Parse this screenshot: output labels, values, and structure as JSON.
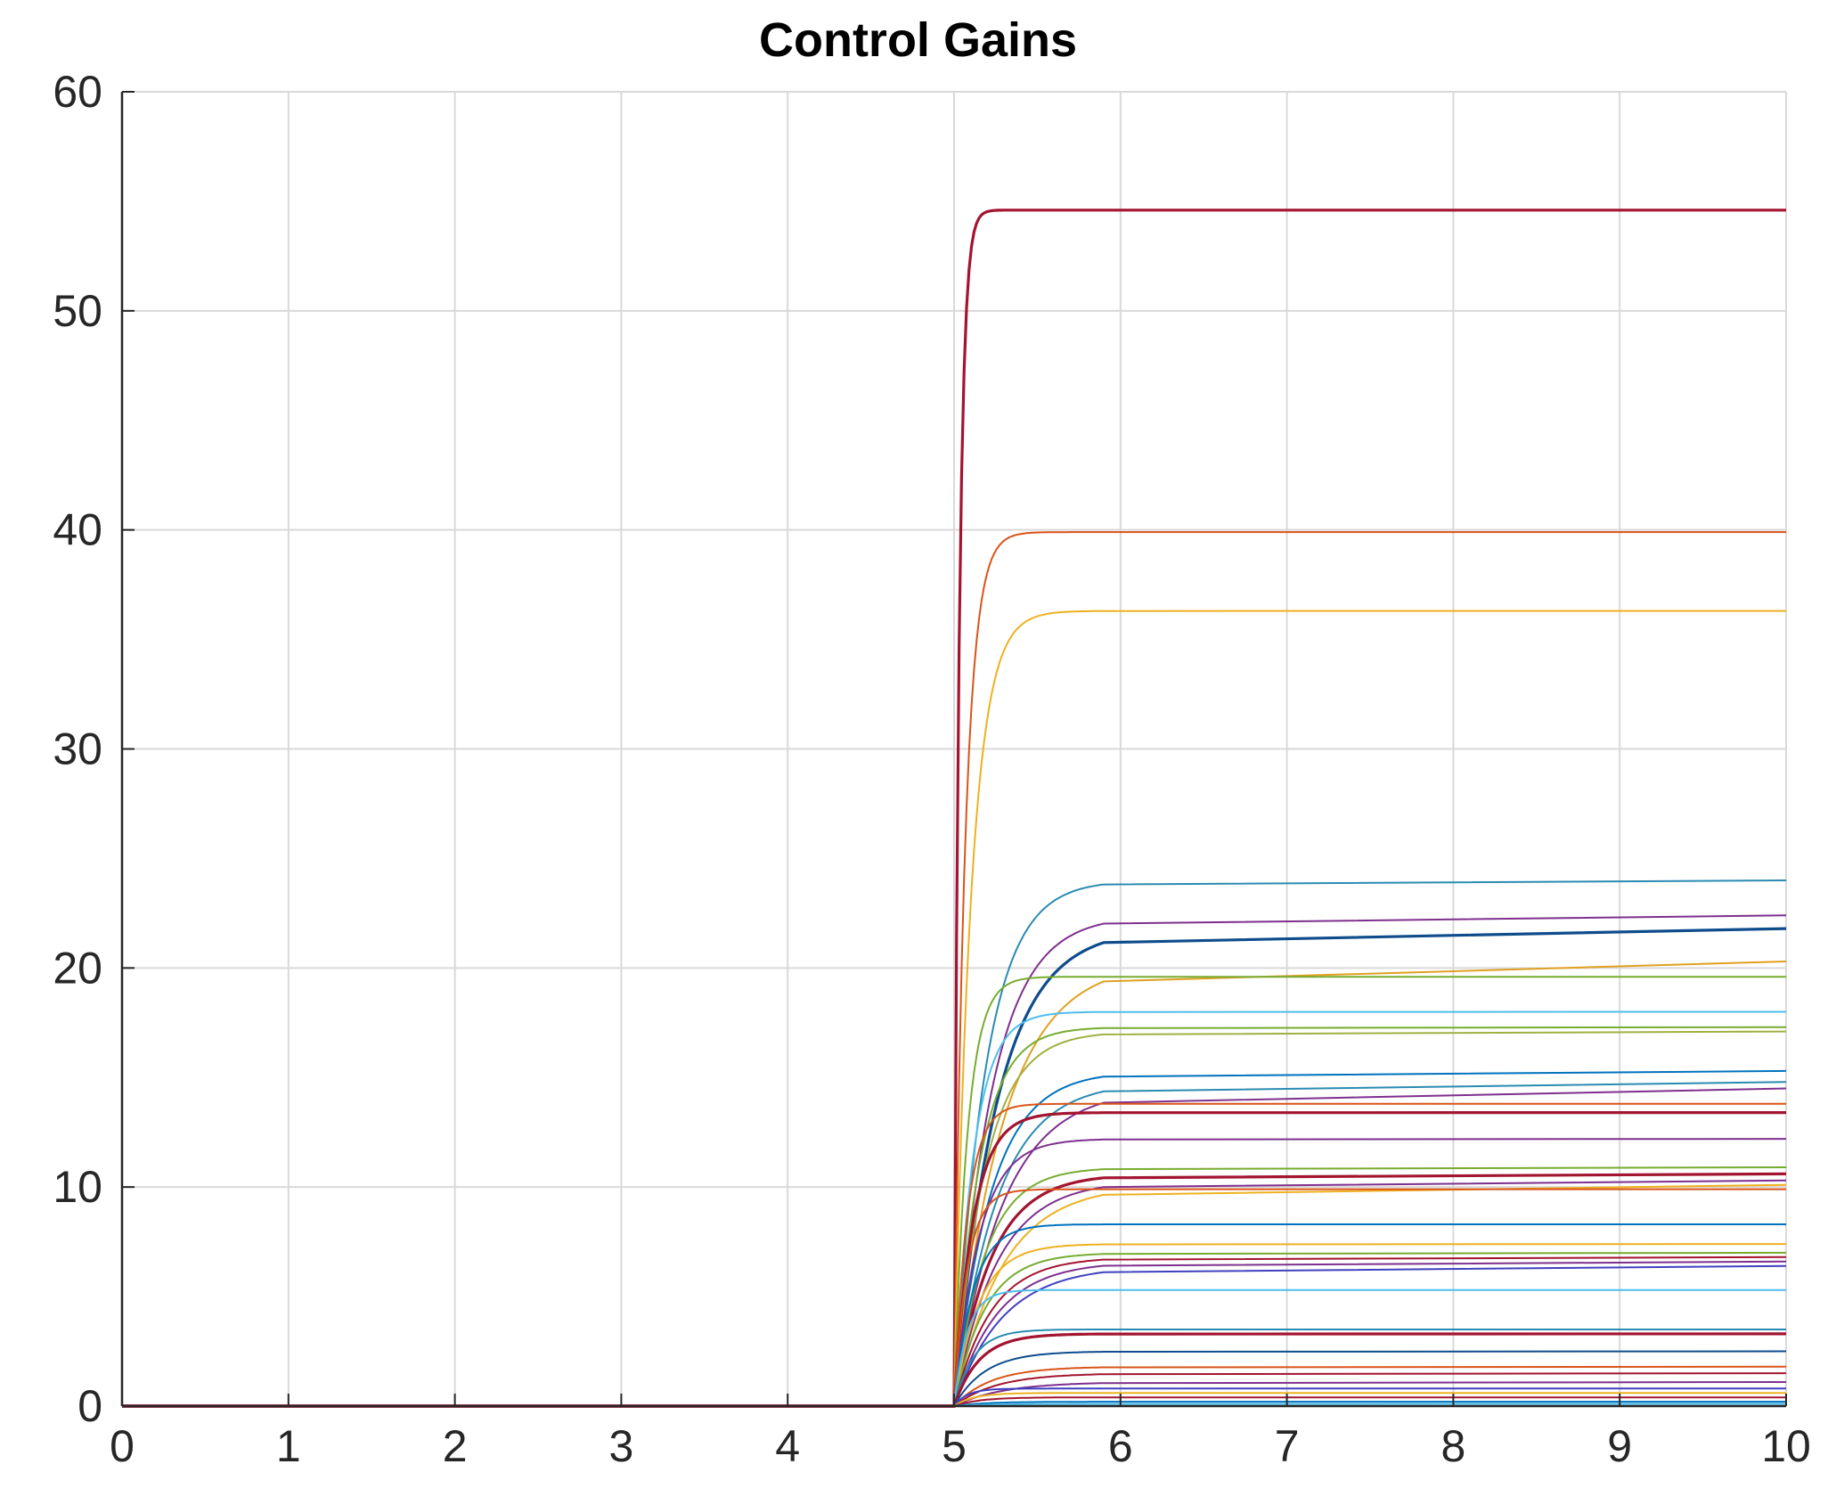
{
  "chart_data": {
    "type": "line",
    "title": "Control Gains",
    "xlabel": "",
    "ylabel": "",
    "xlim": [
      0,
      10
    ],
    "ylim": [
      0,
      60
    ],
    "x_ticks": [
      "0",
      "1",
      "2",
      "3",
      "4",
      "5",
      "6",
      "7",
      "8",
      "9",
      "10"
    ],
    "y_ticks": [
      "0",
      "10",
      "20",
      "30",
      "40",
      "50",
      "60"
    ],
    "grid": true,
    "legend": "none",
    "axis_color": "#262626",
    "grid_color": "#d9d9d9",
    "switch_time": 5,
    "x_end": 10,
    "series": [
      {
        "values": [
          54.6
        ],
        "color": "#a2142f"
      },
      {
        "values": [
          39.9
        ],
        "color": "#d95319"
      },
      {
        "values": [
          36.3
        ],
        "color": "#edb120"
      },
      {
        "values": [
          24.0
        ],
        "color": "#2a8bb1"
      },
      {
        "values": [
          22.4
        ],
        "color": "#7e2f8e"
      },
      {
        "values": [
          21.8
        ],
        "color": "#0e4c8c"
      },
      {
        "values": [
          20.3
        ],
        "color": "#e0a020"
      },
      {
        "values": [
          19.6
        ],
        "color": "#77ac30"
      },
      {
        "values": [
          18.0
        ],
        "color": "#4dbeee"
      },
      {
        "values": [
          17.3
        ],
        "color": "#77ac30"
      },
      {
        "values": [
          17.1
        ],
        "color": "#a0b040"
      },
      {
        "values": [
          15.3
        ],
        "color": "#0072bd"
      },
      {
        "values": [
          14.8
        ],
        "color": "#2a8bb1"
      },
      {
        "values": [
          14.5
        ],
        "color": "#7e2f8e"
      },
      {
        "values": [
          13.8
        ],
        "color": "#d95319"
      },
      {
        "values": [
          13.4
        ],
        "color": "#a2142f"
      },
      {
        "values": [
          12.2
        ],
        "color": "#7e2f8e"
      },
      {
        "values": [
          10.9
        ],
        "color": "#77ac30"
      },
      {
        "values": [
          10.6
        ],
        "color": "#a2142f"
      },
      {
        "values": [
          10.3
        ],
        "color": "#7e2f8e"
      },
      {
        "values": [
          10.1
        ],
        "color": "#edb120"
      },
      {
        "values": [
          9.9
        ],
        "color": "#d95319"
      },
      {
        "values": [
          8.3
        ],
        "color": "#0072bd"
      },
      {
        "values": [
          7.4
        ],
        "color": "#edb120"
      },
      {
        "values": [
          7.0
        ],
        "color": "#77ac30"
      },
      {
        "values": [
          6.8
        ],
        "color": "#a2142f"
      },
      {
        "values": [
          6.6
        ],
        "color": "#7e2f8e"
      },
      {
        "values": [
          6.4
        ],
        "color": "#4040c0"
      },
      {
        "values": [
          5.3
        ],
        "color": "#4dbeee"
      },
      {
        "values": [
          3.5
        ],
        "color": "#2a8bb1"
      },
      {
        "values": [
          3.3
        ],
        "color": "#a2142f"
      },
      {
        "values": [
          2.5
        ],
        "color": "#0e4c8c"
      },
      {
        "values": [
          1.8
        ],
        "color": "#d95319"
      },
      {
        "values": [
          1.5
        ],
        "color": "#a2142f"
      },
      {
        "values": [
          1.1
        ],
        "color": "#7e2f8e"
      },
      {
        "values": [
          0.8
        ],
        "color": "#4040c0"
      },
      {
        "values": [
          0.6
        ],
        "color": "#edb120"
      },
      {
        "values": [
          0.4
        ],
        "color": "#a2142f"
      },
      {
        "values": [
          0.2
        ],
        "color": "#0072bd"
      },
      {
        "values": [
          0.1
        ],
        "color": "#4dbeee"
      }
    ]
  }
}
